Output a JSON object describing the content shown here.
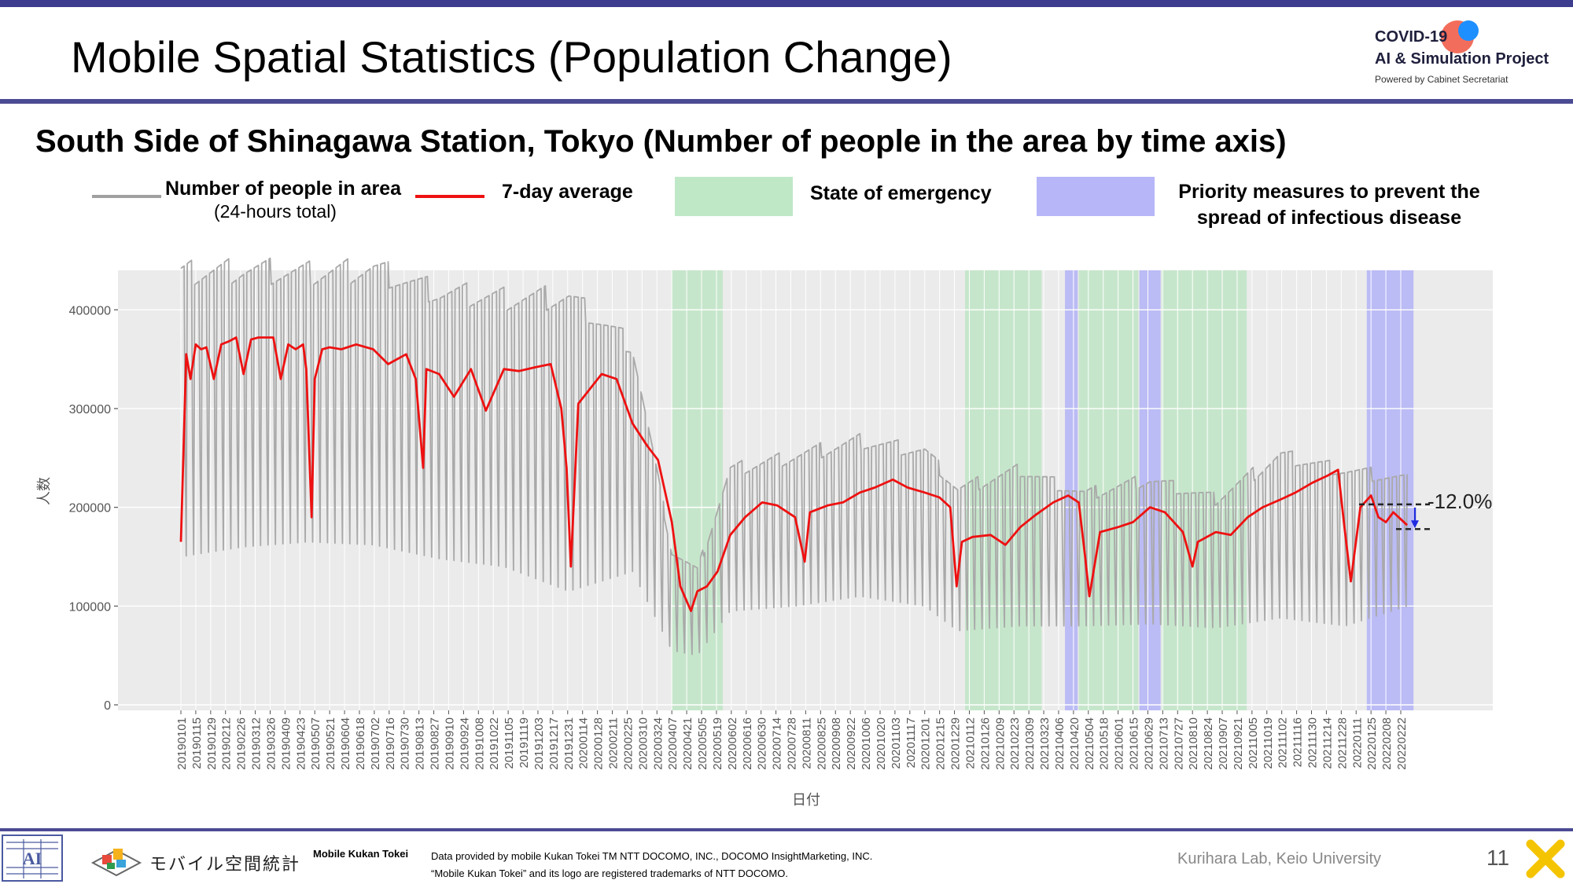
{
  "slide": {
    "title": "Mobile Spatial Statistics (Population Change)",
    "subtitle": "South Side of Shinagawa Station, Tokyo (Number of people in the area by time axis)",
    "page_number": "11",
    "logo": {
      "line1": "COVID-19",
      "line2": "AI & Simulation Project",
      "line3": "Powered by Cabinet Secretariat"
    },
    "footer": {
      "brand_jp": "モバイル空間統計",
      "brand_en": "Mobile Kukan Tokei",
      "provided_by": "Data provided by mobile Kukan Tokei TM NTT DOCOMO, INC., DOCOMO InsightMarketing, INC.",
      "trademark": "“Mobile Kukan Tokei” and its logo are registered trademarks of NTT DOCOMO.",
      "lab": "Kurihara Lab, Keio University"
    },
    "colors": {
      "accent": "#4b4b93",
      "daily": "#a9a9a9",
      "average": "#ee1111",
      "emergency": "#bfe5c5",
      "priority": "#b3b3f7",
      "arrow": "#1f2be0"
    }
  },
  "legend": {
    "daily_label": "Number of people in area",
    "daily_sub": "(24-hours total)",
    "avg_label": "7-day average",
    "emergency_label": "State of emergency",
    "priority_label_1": "Priority measures to prevent the",
    "priority_label_2": "spread of infectious disease"
  },
  "chart_data": {
    "type": "line",
    "ylabel": "人数",
    "xlabel": "日付",
    "ylim": [
      0,
      440000
    ],
    "yticks": [
      0,
      100000,
      200000,
      300000,
      400000
    ],
    "ytick_labels": [
      "0",
      "100000",
      "200000",
      "300000",
      "400000"
    ],
    "x_ticks": [
      "20190101",
      "20190115",
      "20190129",
      "20190212",
      "20190226",
      "20190312",
      "20190326",
      "20190409",
      "20190423",
      "20190507",
      "20190521",
      "20190604",
      "20190618",
      "20190702",
      "20190716",
      "20190730",
      "20190813",
      "20190827",
      "20190910",
      "20190924",
      "20191008",
      "20191022",
      "20191105",
      "20191119",
      "20191203",
      "20191217",
      "20191231",
      "20200114",
      "20200128",
      "20200211",
      "20200225",
      "20200310",
      "20200324",
      "20200407",
      "20200421",
      "20200505",
      "20200519",
      "20200602",
      "20200616",
      "20200630",
      "20200714",
      "20200728",
      "20200811",
      "20200825",
      "20200908",
      "20200922",
      "20201006",
      "20201020",
      "20201103",
      "20201117",
      "20201201",
      "20201215",
      "20201229",
      "20210112",
      "20210126",
      "20210209",
      "20210223",
      "20210309",
      "20210323",
      "20210406",
      "20210420",
      "20210504",
      "20210518",
      "20210601",
      "20210615",
      "20210629",
      "20210713",
      "20210727",
      "20210810",
      "20210824",
      "20210907",
      "20210921",
      "20211005",
      "20211019",
      "20211102",
      "20211116",
      "20211130",
      "20211214",
      "20211228",
      "20220111",
      "20220125",
      "20220208",
      "20220222"
    ],
    "shaded": [
      {
        "type": "State of emergency",
        "from": "20200407",
        "to": "20200525"
      },
      {
        "type": "State of emergency",
        "from": "20210108",
        "to": "20210321"
      },
      {
        "type": "Priority measures to prevent the spread of infectious disease",
        "from": "20210412",
        "to": "20210424"
      },
      {
        "type": "State of emergency",
        "from": "20210425",
        "to": "20210620"
      },
      {
        "type": "Priority measures to prevent the spread of infectious disease",
        "from": "20210621",
        "to": "20210711"
      },
      {
        "type": "State of emergency",
        "from": "20210712",
        "to": "20210930"
      },
      {
        "type": "Priority measures to prevent the spread of infectious disease",
        "from": "20220121",
        "to": "20220306"
      }
    ],
    "series": [
      {
        "name": "7-day average",
        "x": [
          "20190101",
          "20190106",
          "20190110",
          "20190115",
          "20190120",
          "20190125",
          "20190201",
          "20190208",
          "20190215",
          "20190222",
          "20190301",
          "20190308",
          "20190315",
          "20190322",
          "20190329",
          "20190405",
          "20190412",
          "20190419",
          "20190426",
          "20190429",
          "20190504",
          "20190507",
          "20190514",
          "20190521",
          "20190601",
          "20190615",
          "20190701",
          "20190715",
          "20190801",
          "20190810",
          "20190817",
          "20190820",
          "20190901",
          "20190915",
          "20191001",
          "20191015",
          "20191101",
          "20191115",
          "20191201",
          "20191215",
          "20191225",
          "20191230",
          "20200103",
          "20200110",
          "20200201",
          "20200215",
          "20200301",
          "20200315",
          "20200325",
          "20200407",
          "20200415",
          "20200425",
          "20200501",
          "20200510",
          "20200520",
          "20200601",
          "20200615",
          "20200701",
          "20200715",
          "20200801",
          "20200810",
          "20200815",
          "20200901",
          "20200915",
          "20201001",
          "20201015",
          "20201101",
          "20201115",
          "20201201",
          "20201215",
          "20201225",
          "20201231",
          "20210105",
          "20210115",
          "20210201",
          "20210215",
          "20210301",
          "20210315",
          "20210401",
          "20210415",
          "20210425",
          "20210501",
          "20210505",
          "20210515",
          "20210601",
          "20210615",
          "20210701",
          "20210715",
          "20210801",
          "20210810",
          "20210815",
          "20210901",
          "20210915",
          "20211001",
          "20211015",
          "20211101",
          "20211115",
          "20211201",
          "20211215",
          "20211225",
          "20211231",
          "20220106",
          "20220115",
          "20220125",
          "20220201",
          "20220208",
          "20220215",
          "20220222",
          "20220228"
        ],
        "values": [
          165000,
          355000,
          330000,
          365000,
          360000,
          362000,
          330000,
          365000,
          368000,
          372000,
          335000,
          370000,
          372000,
          372000,
          372000,
          330000,
          365000,
          360000,
          365000,
          340000,
          190000,
          330000,
          360000,
          362000,
          360000,
          365000,
          360000,
          345000,
          355000,
          330000,
          240000,
          340000,
          335000,
          312000,
          340000,
          298000,
          340000,
          338000,
          342000,
          345000,
          300000,
          240000,
          140000,
          305000,
          335000,
          330000,
          285000,
          262000,
          248000,
          185000,
          120000,
          95000,
          115000,
          120000,
          135000,
          172000,
          190000,
          205000,
          202000,
          190000,
          145000,
          195000,
          202000,
          205000,
          215000,
          220000,
          228000,
          220000,
          215000,
          210000,
          200000,
          120000,
          165000,
          170000,
          172000,
          162000,
          180000,
          192000,
          205000,
          212000,
          205000,
          150000,
          110000,
          175000,
          180000,
          185000,
          200000,
          195000,
          175000,
          140000,
          165000,
          175000,
          172000,
          190000,
          200000,
          208000,
          215000,
          225000,
          232000,
          238000,
          180000,
          125000,
          200000,
          212000,
          190000,
          185000,
          195000,
          188000,
          182000
        ]
      },
      {
        "name": "Number of people in area",
        "x": [
          "20190101",
          "20190301",
          "20190501",
          "20190701",
          "20190901",
          "20191101",
          "20200101",
          "20200301",
          "20200407",
          "20200501",
          "20200601",
          "20200801",
          "20201001",
          "20201201",
          "20210101",
          "20210301",
          "20210501",
          "20210701",
          "20210901",
          "20211101",
          "20220101",
          "20220228"
        ],
        "weekday_peak": [
          450000,
          455000,
          450000,
          455000,
          430000,
          425000,
          425000,
          375000,
          160000,
          140000,
          245000,
          260000,
          275000,
          265000,
          225000,
          245000,
          220000,
          235000,
          215000,
          260000,
          245000,
          235000
        ],
        "weekend_low": [
          150000,
          160000,
          165000,
          162000,
          148000,
          140000,
          115000,
          135000,
          55000,
          50000,
          95000,
          100000,
          110000,
          100000,
          75000,
          80000,
          80000,
          82000,
          78000,
          88000,
          80000,
          100000
        ]
      }
    ],
    "annotation": {
      "text": "-12.0%",
      "from_value": 203000,
      "to_value": 178000
    }
  }
}
